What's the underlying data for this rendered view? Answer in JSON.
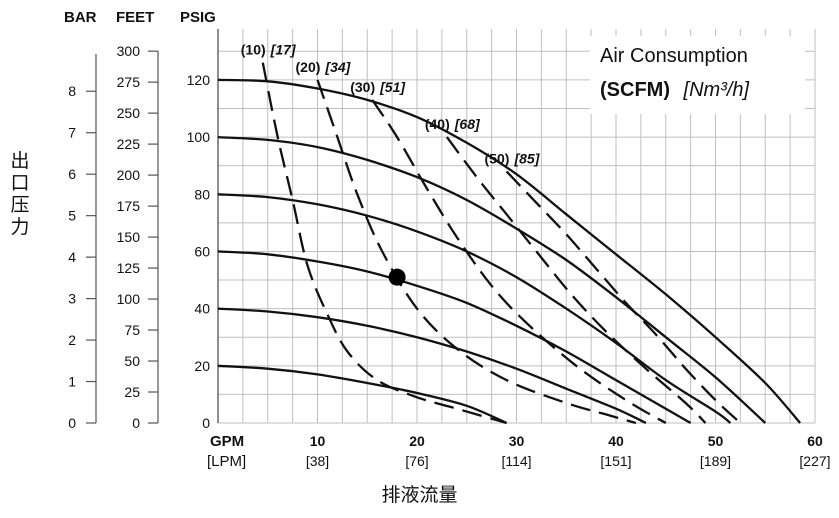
{
  "chart_data": {
    "type": "line",
    "title": "Air Consumption",
    "subtitle_bold": "(SCFM)",
    "subtitle_italic": "[Nm³/h]",
    "y_axis_headers": [
      "BAR",
      "FEET",
      "PSIG"
    ],
    "y_side_label": "出口压力",
    "x_unit_primary": "GPM",
    "x_unit_secondary": "[LPM]",
    "x_label": "排液流量",
    "x_ticks": [
      {
        "gpm": 0,
        "gpm_label": "",
        "lpm_label": ""
      },
      {
        "gpm": 10,
        "gpm_label": "10",
        "lpm_label": "[38]"
      },
      {
        "gpm": 20,
        "gpm_label": "20",
        "lpm_label": "[76]"
      },
      {
        "gpm": 30,
        "gpm_label": "30",
        "lpm_label": "[114]"
      },
      {
        "gpm": 40,
        "gpm_label": "40",
        "lpm_label": "[151]"
      },
      {
        "gpm": 50,
        "gpm_label": "50",
        "lpm_label": "[189]"
      },
      {
        "gpm": 60,
        "gpm_label": "60",
        "lpm_label": "[227]"
      }
    ],
    "xlim": [
      0,
      60
    ],
    "psig_ticks": [
      0,
      20,
      40,
      60,
      80,
      100,
      120
    ],
    "psig_lim": [
      0,
      135
    ],
    "feet_ticks": [
      0,
      25,
      50,
      75,
      100,
      125,
      150,
      175,
      200,
      225,
      250,
      275,
      300
    ],
    "bar_ticks": [
      0,
      1,
      2,
      3,
      4,
      5,
      6,
      7,
      8
    ],
    "psi_per_bar": 14.5038,
    "psi_per_foot": 0.4335,
    "grid": true,
    "pressure_curves": [
      {
        "inlet_psig": 120,
        "points": [
          [
            0,
            120
          ],
          [
            5,
            119.5
          ],
          [
            10,
            117
          ],
          [
            15,
            113
          ],
          [
            20,
            107
          ],
          [
            25,
            98
          ],
          [
            30,
            87
          ],
          [
            35,
            73
          ],
          [
            40,
            59
          ],
          [
            45,
            45
          ],
          [
            50,
            30
          ],
          [
            55,
            14
          ],
          [
            58.5,
            0
          ]
        ]
      },
      {
        "inlet_psig": 100,
        "points": [
          [
            0,
            100
          ],
          [
            5,
            99
          ],
          [
            10,
            96.5
          ],
          [
            15,
            92
          ],
          [
            20,
            86
          ],
          [
            25,
            78
          ],
          [
            30,
            68
          ],
          [
            35,
            57
          ],
          [
            40,
            44
          ],
          [
            45,
            30
          ],
          [
            50,
            16
          ],
          [
            55,
            0
          ]
        ]
      },
      {
        "inlet_psig": 80,
        "points": [
          [
            0,
            80
          ],
          [
            5,
            79
          ],
          [
            10,
            76.5
          ],
          [
            15,
            72.5
          ],
          [
            20,
            67
          ],
          [
            25,
            60
          ],
          [
            30,
            51
          ],
          [
            35,
            40
          ],
          [
            40,
            28
          ],
          [
            45,
            15
          ],
          [
            50,
            4
          ],
          [
            51.5,
            0
          ]
        ]
      },
      {
        "inlet_psig": 60,
        "points": [
          [
            0,
            60
          ],
          [
            5,
            59
          ],
          [
            10,
            56.5
          ],
          [
            15,
            53
          ],
          [
            20,
            48
          ],
          [
            25,
            42
          ],
          [
            30,
            34
          ],
          [
            35,
            25
          ],
          [
            40,
            15
          ],
          [
            45,
            5
          ],
          [
            47.5,
            0
          ]
        ]
      },
      {
        "inlet_psig": 40,
        "points": [
          [
            0,
            40
          ],
          [
            5,
            39
          ],
          [
            10,
            37
          ],
          [
            15,
            34
          ],
          [
            20,
            30
          ],
          [
            25,
            25
          ],
          [
            30,
            19
          ],
          [
            35,
            12
          ],
          [
            40,
            5
          ],
          [
            43,
            0
          ]
        ]
      },
      {
        "inlet_psig": 20,
        "points": [
          [
            0,
            20
          ],
          [
            5,
            19
          ],
          [
            10,
            17
          ],
          [
            15,
            14
          ],
          [
            20,
            10.5
          ],
          [
            25,
            6
          ],
          [
            29,
            0
          ]
        ]
      }
    ],
    "air_consumption_curves": [
      {
        "scfm": 10,
        "label": "(10)",
        "label_metric": "[17]",
        "points": [
          [
            4.5,
            126
          ],
          [
            6,
            100
          ],
          [
            7.5,
            78
          ],
          [
            9,
            55
          ],
          [
            11,
            38
          ],
          [
            13,
            25
          ],
          [
            16,
            15
          ],
          [
            20,
            9
          ],
          [
            24,
            5
          ],
          [
            29,
            0
          ]
        ]
      },
      {
        "scfm": 20,
        "label": "(20)",
        "label_metric": "[34]",
        "points": [
          [
            10,
            120
          ],
          [
            12,
            100
          ],
          [
            14,
            80
          ],
          [
            16.5,
            60
          ],
          [
            20,
            40
          ],
          [
            24,
            26
          ],
          [
            29,
            15
          ],
          [
            35,
            7
          ],
          [
            39,
            3
          ],
          [
            42,
            0
          ]
        ]
      },
      {
        "scfm": 30,
        "label": "(30)",
        "label_metric": "[51]",
        "points": [
          [
            15.5,
            113
          ],
          [
            18,
            100
          ],
          [
            21,
            82
          ],
          [
            24,
            65
          ],
          [
            27.5,
            48
          ],
          [
            31,
            35
          ],
          [
            36,
            20
          ],
          [
            41,
            8
          ],
          [
            45,
            0
          ]
        ]
      },
      {
        "scfm": 40,
        "label": "(40)",
        "label_metric": "[68]",
        "points": [
          [
            23,
            100
          ],
          [
            26,
            86
          ],
          [
            29,
            73
          ],
          [
            32,
            60
          ],
          [
            35.5,
            45
          ],
          [
            39,
            32
          ],
          [
            43,
            19
          ],
          [
            47,
            7
          ],
          [
            49,
            0
          ]
        ]
      },
      {
        "scfm": 50,
        "label": "(50)",
        "label_metric": "[85]",
        "points": [
          [
            29,
            88
          ],
          [
            32,
            77
          ],
          [
            35,
            66
          ],
          [
            38,
            54
          ],
          [
            41,
            42
          ],
          [
            44,
            31
          ],
          [
            47,
            19
          ],
          [
            50,
            8
          ],
          [
            52.5,
            0
          ]
        ]
      }
    ],
    "operating_point": {
      "gpm": 18,
      "psig": 51
    }
  }
}
